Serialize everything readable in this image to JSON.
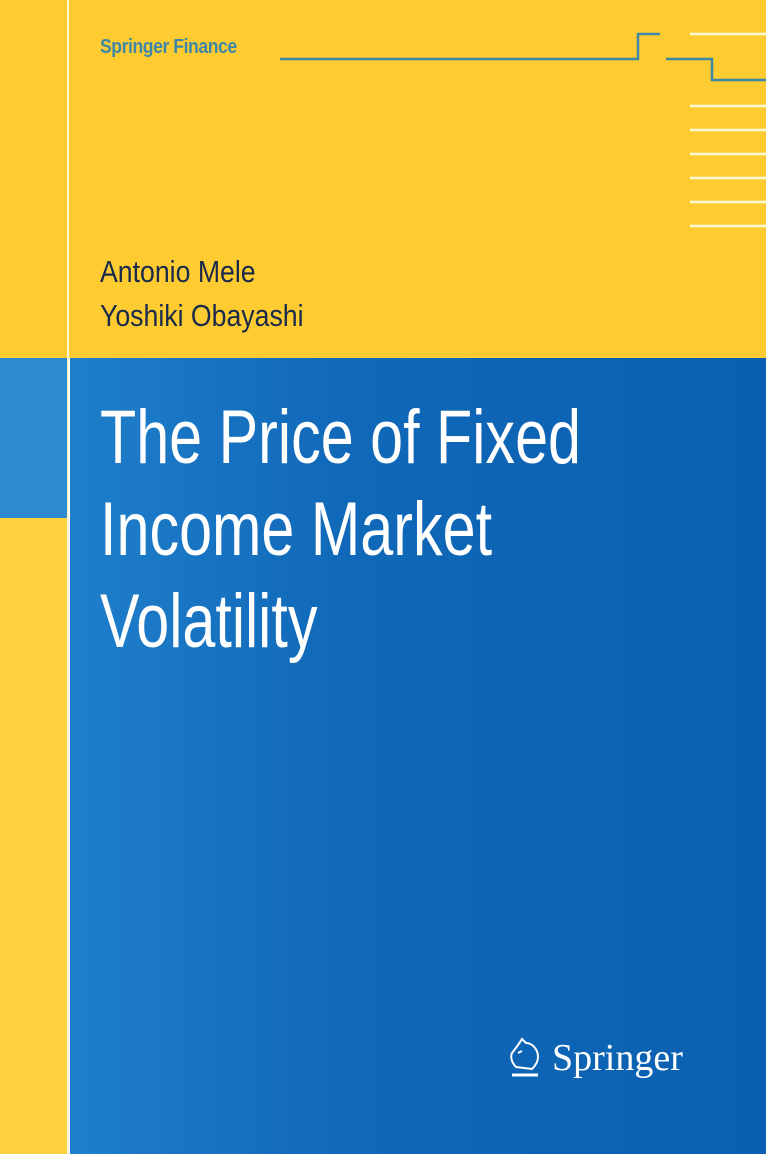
{
  "series": "Springer Finance",
  "authors": [
    "Antonio Mele",
    "Yoshiki Obayashi"
  ],
  "title_lines": [
    "The Price of Fixed",
    "Income Market",
    "Volatility"
  ],
  "publisher": "Springer",
  "colors": {
    "yellow": "#fecc31",
    "blue": "#0a5fb0",
    "series_text": "#3e87a6"
  }
}
